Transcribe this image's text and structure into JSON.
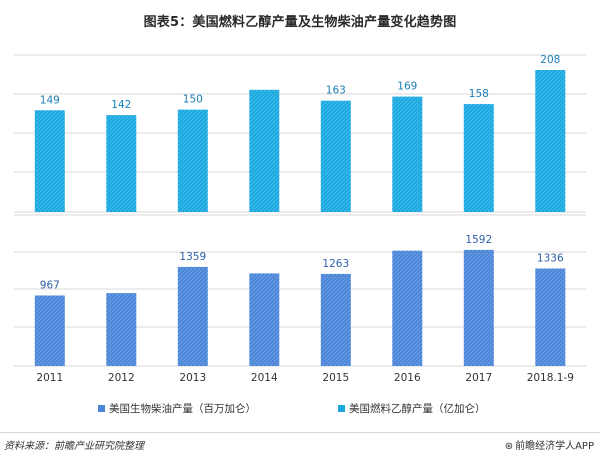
{
  "title": "图表5：美国燃料乙醇产量及生物柴油产量变化趋势图",
  "chart_data": [
    {
      "type": "bar",
      "series_name": "美国燃料乙醇产量（亿加仑）",
      "categories": [
        "2011",
        "2012",
        "2013",
        "2014",
        "2015",
        "2016",
        "2017",
        "2018.1-9"
      ],
      "values": [
        149,
        142,
        150,
        179,
        163,
        169,
        158,
        208
      ],
      "data_labels": [
        "149",
        "142",
        "150",
        "",
        "163",
        "169",
        "158",
        "208"
      ],
      "ylim": [
        0,
        230
      ],
      "grid": true,
      "color": "#1da8e0"
    },
    {
      "type": "bar",
      "series_name": "美国生物柴油产量（百万加仑）",
      "categories": [
        "2011",
        "2012",
        "2013",
        "2014",
        "2015",
        "2016",
        "2017",
        "2018.1-9"
      ],
      "values": [
        967,
        1000,
        1359,
        1270,
        1263,
        1580,
        1592,
        1336
      ],
      "data_labels": [
        "967",
        "",
        "1359",
        "",
        "1263",
        "",
        "1592",
        "1336"
      ],
      "ylim": [
        0,
        2070
      ],
      "grid": true,
      "color": "#4b86d8"
    }
  ],
  "x_tick_labels": [
    "2011",
    "2012",
    "2013",
    "2014",
    "2015",
    "2016",
    "2017",
    "2018.1-9"
  ],
  "legend": [
    {
      "label": "美国生物柴油产量（百万加仑）",
      "color": "#4b86d8"
    },
    {
      "label": "美国燃料乙醇产量（亿加仑）",
      "color": "#1da8e0"
    }
  ],
  "footer": {
    "source": "资料来源：前瞻产业研究院整理",
    "brand": "前瞻经济学人APP",
    "brand_icon": "qianzhan-logo-icon"
  }
}
